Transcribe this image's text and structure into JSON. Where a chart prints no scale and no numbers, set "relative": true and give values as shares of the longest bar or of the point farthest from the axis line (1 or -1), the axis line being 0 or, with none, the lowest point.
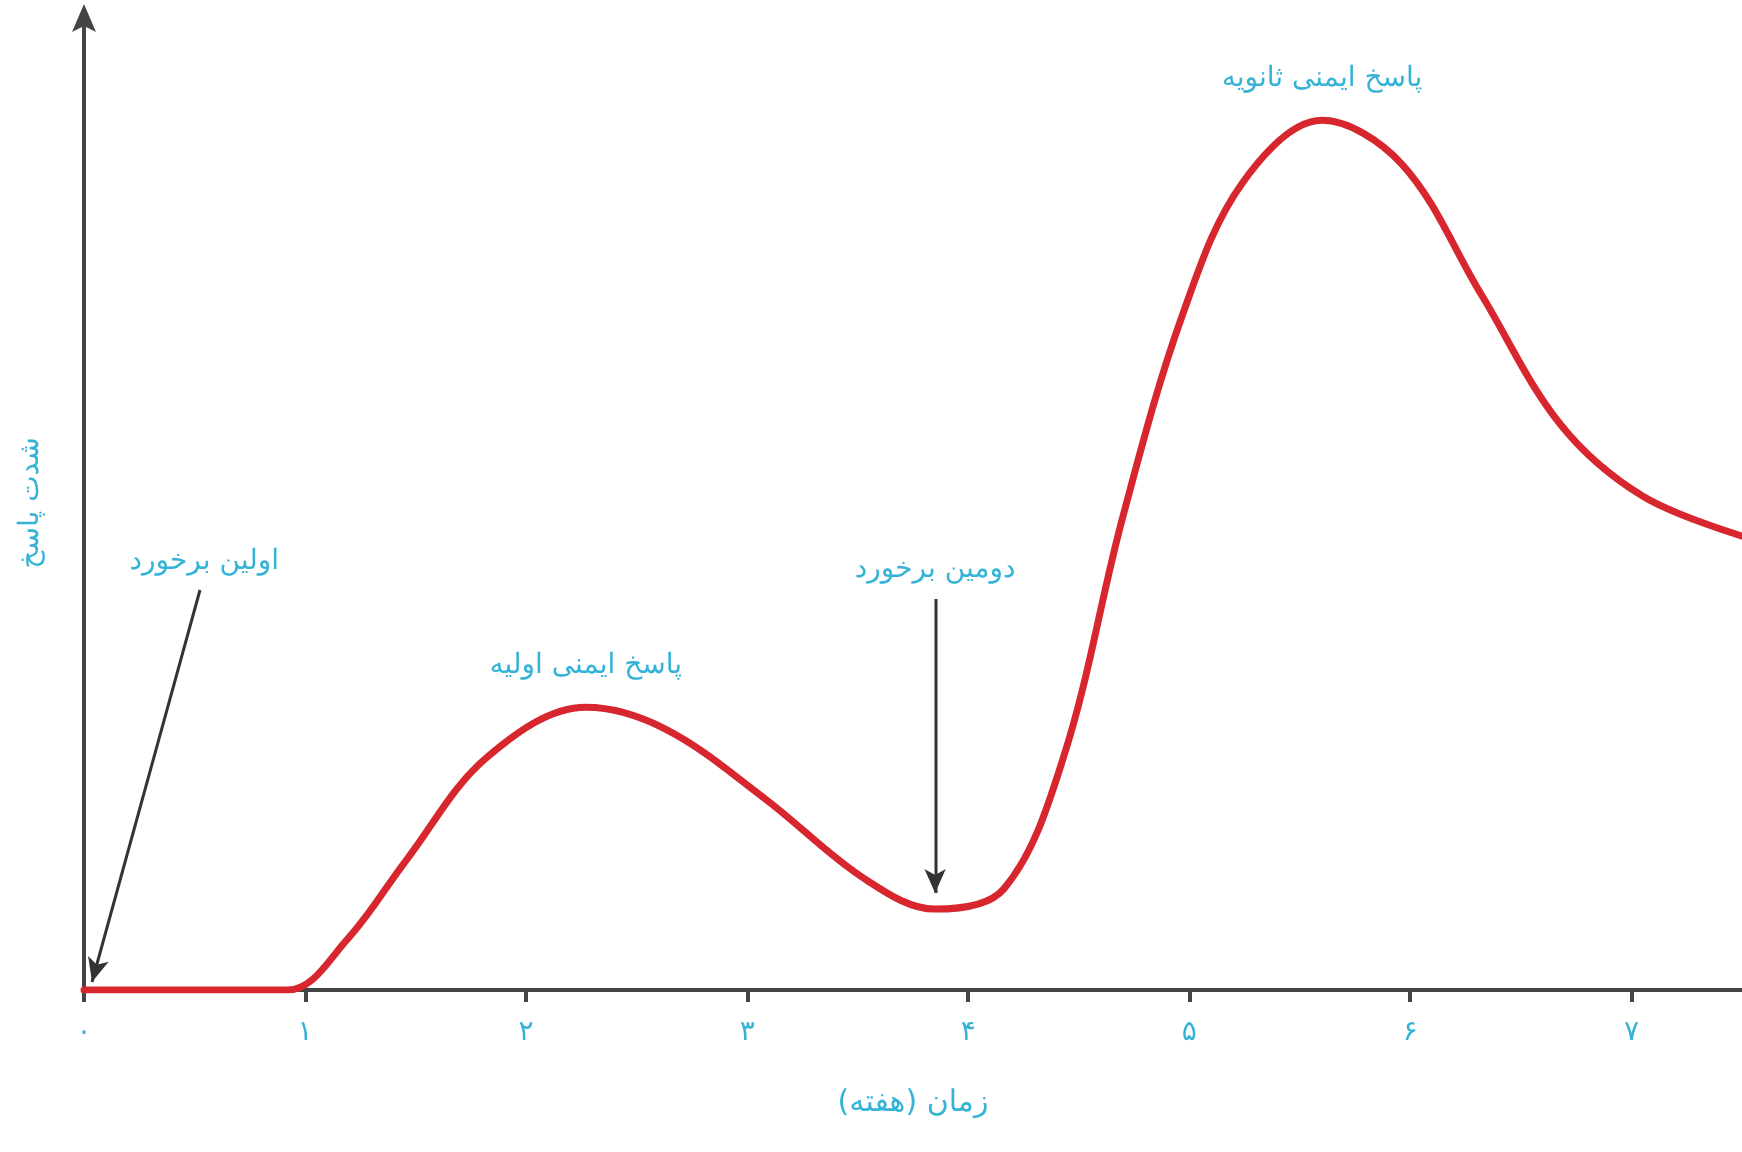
{
  "chart_data": {
    "type": "line",
    "relative": true,
    "xlabel": "زمان (هفته)",
    "ylabel": "شدت پاسخ",
    "xlim": [
      0,
      7.5
    ],
    "xticks": [
      {
        "value": 0,
        "label": "۰"
      },
      {
        "value": 1,
        "label": "۱"
      },
      {
        "value": 2,
        "label": "۲"
      },
      {
        "value": 3,
        "label": "۳"
      },
      {
        "value": 4,
        "label": "۴"
      },
      {
        "value": 5,
        "label": "۵"
      },
      {
        "value": 6,
        "label": "۶"
      },
      {
        "value": 7,
        "label": "۷"
      }
    ],
    "series": [
      {
        "color": "#d8262e",
        "x": [
          0,
          0.92,
          1.19,
          1.46,
          1.82,
          2.27,
          2.63,
          3.08,
          3.53,
          3.85,
          4.16,
          4.43,
          4.7,
          4.97,
          5.24,
          5.6,
          5.96,
          6.32,
          6.68,
          7.05,
          7.5
        ],
        "values": [
          0,
          0,
          0.058,
          0.15,
          0.267,
          0.325,
          0.3,
          0.22,
          0.128,
          0.093,
          0.116,
          0.267,
          0.545,
          0.777,
          0.928,
          1,
          0.95,
          0.8,
          0.65,
          0.568,
          0.522
        ]
      }
    ],
    "annotations": [
      {
        "text": "اولین برخورد",
        "x": 0,
        "y": 0
      },
      {
        "text": "پاسخ ایمنی اولیه",
        "x": 2.27,
        "y": 0.325
      },
      {
        "text": "دومین برخورد",
        "x": 3.85,
        "y": 0.093
      },
      {
        "text": "پاسخ ایمنی ثانویه",
        "x": 5.6,
        "y": 1
      }
    ],
    "grid": false,
    "marker": "none",
    "line_style": "solid"
  }
}
